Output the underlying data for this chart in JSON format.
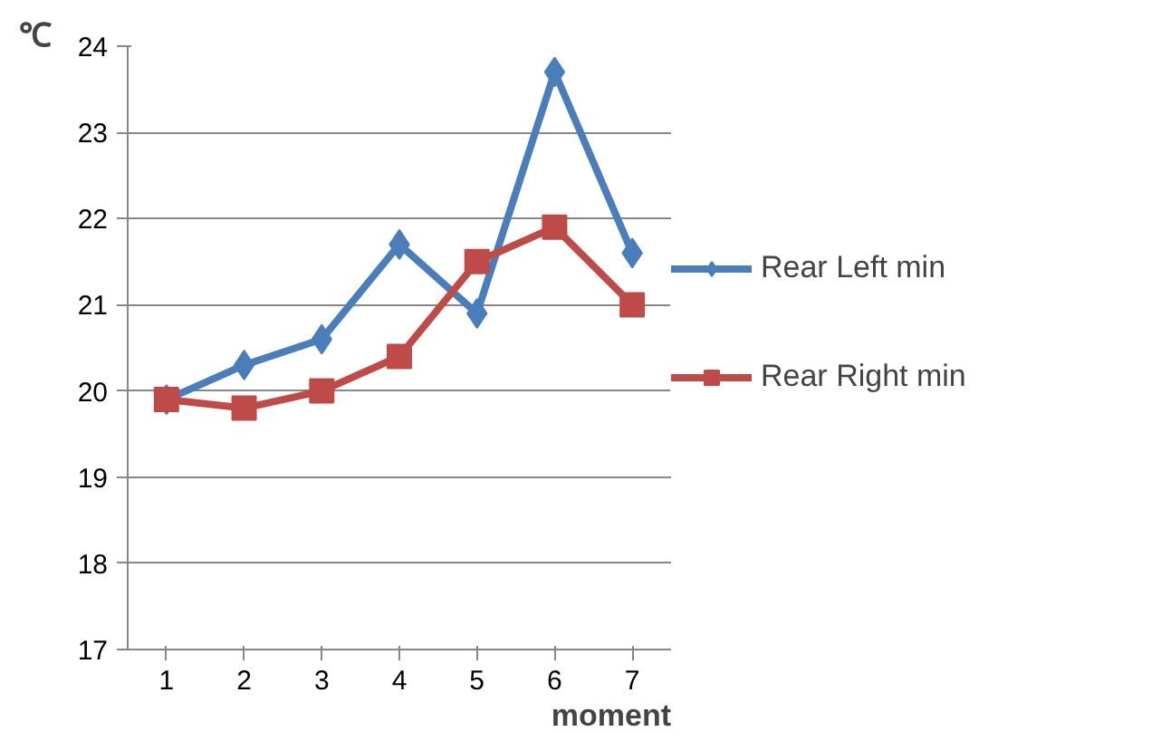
{
  "chart_data": {
    "type": "line",
    "ylabel": "℃",
    "xlabel": "moment",
    "categories": [
      "1",
      "2",
      "3",
      "4",
      "5",
      "6",
      "7"
    ],
    "series": [
      {
        "name": "Rear Left min",
        "color": "#4a7ebb",
        "values": [
          19.9,
          20.3,
          20.6,
          21.7,
          20.9,
          23.7,
          21.6
        ],
        "marker": "diamond"
      },
      {
        "name": "Rear Right min",
        "color": "#be4b48",
        "values": [
          19.9,
          19.8,
          20.0,
          20.4,
          21.5,
          21.9,
          21.0
        ],
        "marker": "square"
      }
    ],
    "ylim": [
      17,
      24
    ],
    "yticks": [
      17,
      18,
      19,
      20,
      21,
      22,
      23,
      24
    ],
    "grid": "y",
    "legend": "right",
    "line_style": "solid"
  }
}
